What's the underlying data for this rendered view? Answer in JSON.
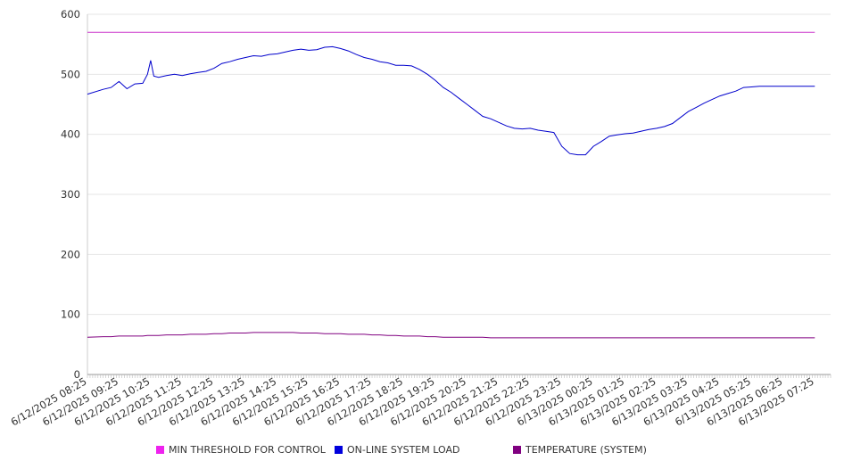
{
  "chart_data": {
    "type": "line",
    "title": "",
    "xlabel": "",
    "ylabel": "",
    "ylim": [
      0,
      600
    ],
    "yticks": [
      0,
      100,
      200,
      300,
      400,
      500,
      600
    ],
    "grid": "horizontal",
    "legend_position": "bottom",
    "x_tick_labels": [
      "6/12/2025 08:25",
      "6/12/2025 09:25",
      "6/12/2025 10:25",
      "6/12/2025 11:25",
      "6/12/2025 12:25",
      "6/12/2025 13:25",
      "6/12/2025 14:25",
      "6/12/2025 15:25",
      "6/12/2025 16:25",
      "6/12/2025 17:25",
      "6/12/2025 18:25",
      "6/12/2025 19:25",
      "6/12/2025 20:25",
      "6/12/2025 21:25",
      "6/12/2025 22:25",
      "6/12/2025 23:25",
      "6/13/2025 00:25",
      "6/13/2025 01:25",
      "6/13/2025 02:25",
      "6/13/2025 03:25",
      "6/13/2025 04:25",
      "6/13/2025 05:25",
      "6/13/2025 06:25",
      "6/13/2025 07:25"
    ],
    "x_hours": [
      0,
      0.5,
      0.75,
      1,
      1.25,
      1.5,
      1.75,
      1.9,
      2.0,
      2.1,
      2.25,
      2.5,
      2.75,
      3,
      3.25,
      3.5,
      3.75,
      4,
      4.25,
      4.5,
      4.75,
      5,
      5.25,
      5.5,
      5.75,
      6,
      6.25,
      6.5,
      6.75,
      7,
      7.25,
      7.5,
      7.75,
      8,
      8.25,
      8.5,
      8.75,
      9,
      9.25,
      9.5,
      9.75,
      10,
      10.25,
      10.5,
      10.75,
      11,
      11.25,
      11.5,
      11.75,
      12,
      12.25,
      12.5,
      12.75,
      13,
      13.25,
      13.5,
      13.75,
      14,
      14.25,
      14.5,
      14.75,
      15,
      15.25,
      15.5,
      15.75,
      16,
      16.25,
      16.5,
      16.75,
      17,
      17.25,
      17.5,
      17.75,
      18,
      18.25,
      18.5,
      18.75,
      19,
      19.25,
      19.5,
      19.75,
      20,
      20.25,
      20.5,
      20.75,
      21,
      21.25,
      21.5,
      21.75,
      22,
      22.25,
      22.5,
      22.75,
      23,
      23.25,
      23.5
    ],
    "series": [
      {
        "name": "MIN THRESHOLD FOR CONTROL",
        "color": "#cc33cc",
        "values": [
          570,
          570,
          570,
          570,
          570,
          570,
          570,
          570,
          570,
          570,
          570,
          570,
          570,
          570,
          570,
          570,
          570,
          570,
          570,
          570,
          570,
          570,
          570,
          570,
          570,
          570,
          570,
          570,
          570,
          570,
          570,
          570,
          570,
          570,
          570,
          570,
          570,
          570,
          570,
          570,
          570,
          570,
          570,
          570,
          570,
          570,
          570,
          570,
          570,
          570,
          570,
          570,
          570,
          570,
          570,
          570,
          570,
          570,
          570,
          570,
          570,
          570,
          570,
          570,
          570,
          570,
          570,
          570,
          570,
          570,
          570,
          570,
          570,
          570,
          570,
          570,
          570,
          570,
          570,
          570,
          570,
          570,
          570,
          570,
          570,
          570,
          570,
          570,
          570,
          570,
          570,
          570,
          570,
          570
        ]
      },
      {
        "name": "ON-LINE SYSTEM LOAD",
        "color": "#0000cc",
        "values": [
          467,
          475,
          478,
          488,
          476,
          484,
          485,
          500,
          523,
          497,
          495,
          498,
          500,
          498,
          501,
          503,
          505,
          510,
          518,
          521,
          525,
          528,
          531,
          530,
          533,
          534,
          537,
          540,
          542,
          540,
          541,
          545,
          546,
          543,
          539,
          533,
          528,
          525,
          521,
          519,
          515,
          515,
          514,
          508,
          500,
          490,
          478,
          470,
          460,
          450,
          440,
          430,
          426,
          420,
          414,
          410,
          409,
          410,
          407,
          405,
          403,
          380,
          368,
          366,
          366,
          380,
          388,
          397,
          399,
          401,
          402,
          405,
          408,
          410,
          413,
          418,
          428,
          438,
          445,
          452,
          458,
          464,
          468,
          472,
          478,
          479,
          480,
          480,
          480,
          480,
          480,
          480,
          480,
          480
        ]
      },
      {
        "name": "TEMPERATURE (SYSTEM)",
        "color": "#800080",
        "values": [
          62,
          63,
          63,
          64,
          64,
          64,
          64,
          65,
          65,
          65,
          65,
          66,
          66,
          66,
          67,
          67,
          67,
          68,
          68,
          69,
          69,
          69,
          70,
          70,
          70,
          70,
          70,
          70,
          69,
          69,
          69,
          68,
          68,
          68,
          67,
          67,
          67,
          66,
          66,
          65,
          65,
          64,
          64,
          64,
          63,
          63,
          62,
          62,
          62,
          62,
          62,
          62,
          61,
          61,
          61,
          61,
          61,
          61,
          61,
          61,
          61,
          61,
          61,
          61,
          61,
          61,
          61,
          61,
          61,
          61,
          61,
          61,
          61,
          61,
          61,
          61,
          61,
          61,
          61,
          61,
          61,
          61,
          61,
          61,
          61,
          61,
          61,
          61,
          61,
          61,
          61,
          61,
          61,
          61
        ]
      }
    ]
  },
  "legend": {
    "items": [
      {
        "label": "MIN THRESHOLD FOR CONTROL",
        "color": "#ee22ee"
      },
      {
        "label": "ON-LINE SYSTEM LOAD",
        "color": "#0000dd"
      },
      {
        "label": "TEMPERATURE (SYSTEM)",
        "color": "#800080"
      }
    ]
  }
}
